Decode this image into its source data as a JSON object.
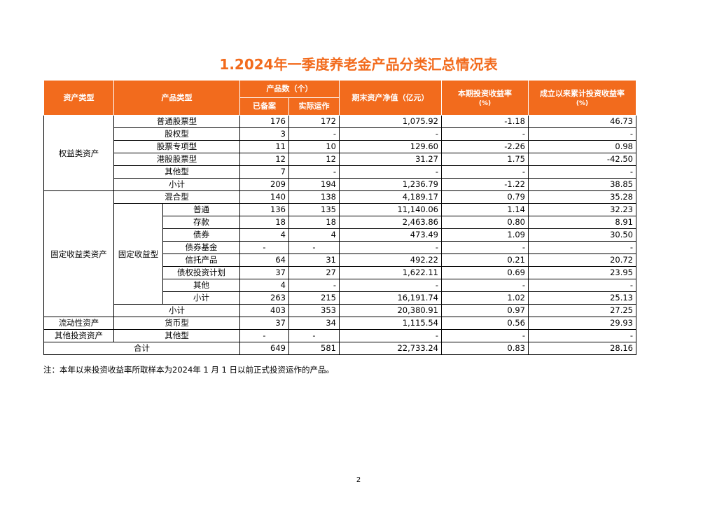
{
  "title": "1.2024年一季度养老金产品分类汇总情况表",
  "headers": {
    "asset_type": "资产类型",
    "product_type": "产品类型",
    "count": "产品数（个）",
    "filed": "已备案",
    "running": "实际运作",
    "nav": "期末资产净值（亿元）",
    "period_return": "本期投资收益率",
    "period_return_unit": "(%)",
    "cum_return": "成立以来累计投资收益率",
    "cum_return_unit": "(%)"
  },
  "groups": {
    "equity": "权益类资产",
    "fixed_income": "固定收益类资产",
    "fixed_income_sub": "固定收益型",
    "liquidity": "流动性资产",
    "other": "其他投资资产"
  },
  "rows": [
    {
      "name": "普通股票型",
      "filed": "176",
      "running": "172",
      "nav": "1,075.92",
      "period": "-1.18",
      "cum": "46.73"
    },
    {
      "name": "股权型",
      "filed": "3",
      "running": "-",
      "nav": "-",
      "period": "-",
      "cum": "-"
    },
    {
      "name": "股票专项型",
      "filed": "11",
      "running": "10",
      "nav": "129.60",
      "period": "-2.26",
      "cum": "0.98"
    },
    {
      "name": "港股股票型",
      "filed": "12",
      "running": "12",
      "nav": "31.27",
      "period": "1.75",
      "cum": "-42.50"
    },
    {
      "name": "其他型",
      "filed": "7",
      "running": "-",
      "nav": "-",
      "period": "-",
      "cum": "-"
    },
    {
      "name": "小计",
      "filed": "209",
      "running": "194",
      "nav": "1,236.79",
      "period": "-1.22",
      "cum": "38.85"
    },
    {
      "name": "混合型",
      "filed": "140",
      "running": "138",
      "nav": "4,189.17",
      "period": "0.79",
      "cum": "35.28"
    },
    {
      "name": "普通",
      "filed": "136",
      "running": "135",
      "nav": "11,140.06",
      "period": "1.14",
      "cum": "32.23"
    },
    {
      "name": "存款",
      "filed": "18",
      "running": "18",
      "nav": "2,463.86",
      "period": "0.80",
      "cum": "8.91"
    },
    {
      "name": "债券",
      "filed": "4",
      "running": "4",
      "nav": "473.49",
      "period": "1.09",
      "cum": "30.50"
    },
    {
      "name": "债券基金",
      "filed": "-",
      "running": "-",
      "nav": "-",
      "period": "-",
      "cum": "-"
    },
    {
      "name": "信托产品",
      "filed": "64",
      "running": "31",
      "nav": "492.22",
      "period": "0.21",
      "cum": "20.72"
    },
    {
      "name": "债权投资计划",
      "filed": "37",
      "running": "27",
      "nav": "1,622.11",
      "period": "0.69",
      "cum": "23.95"
    },
    {
      "name": "其他",
      "filed": "4",
      "running": "-",
      "nav": "-",
      "period": "-",
      "cum": "-"
    },
    {
      "name": "小计",
      "filed": "263",
      "running": "215",
      "nav": "16,191.74",
      "period": "1.02",
      "cum": "25.13"
    },
    {
      "name": "小计",
      "filed": "403",
      "running": "353",
      "nav": "20,380.91",
      "period": "0.97",
      "cum": "27.25"
    },
    {
      "name": "货币型",
      "filed": "37",
      "running": "34",
      "nav": "1,115.54",
      "period": "0.56",
      "cum": "29.93"
    },
    {
      "name": "其他型",
      "filed": "-",
      "running": "-",
      "nav": "-",
      "period": "-",
      "cum": "-"
    },
    {
      "name": "合计",
      "filed": "649",
      "running": "581",
      "nav": "22,733.24",
      "period": "0.83",
      "cum": "28.16"
    }
  ],
  "note": "注：本年以来投资收益率所取样本为2024年 1 月 1 日以前正式投资运作的产品。",
  "page_number": "2",
  "colors": {
    "accent": "#f26b1d"
  }
}
